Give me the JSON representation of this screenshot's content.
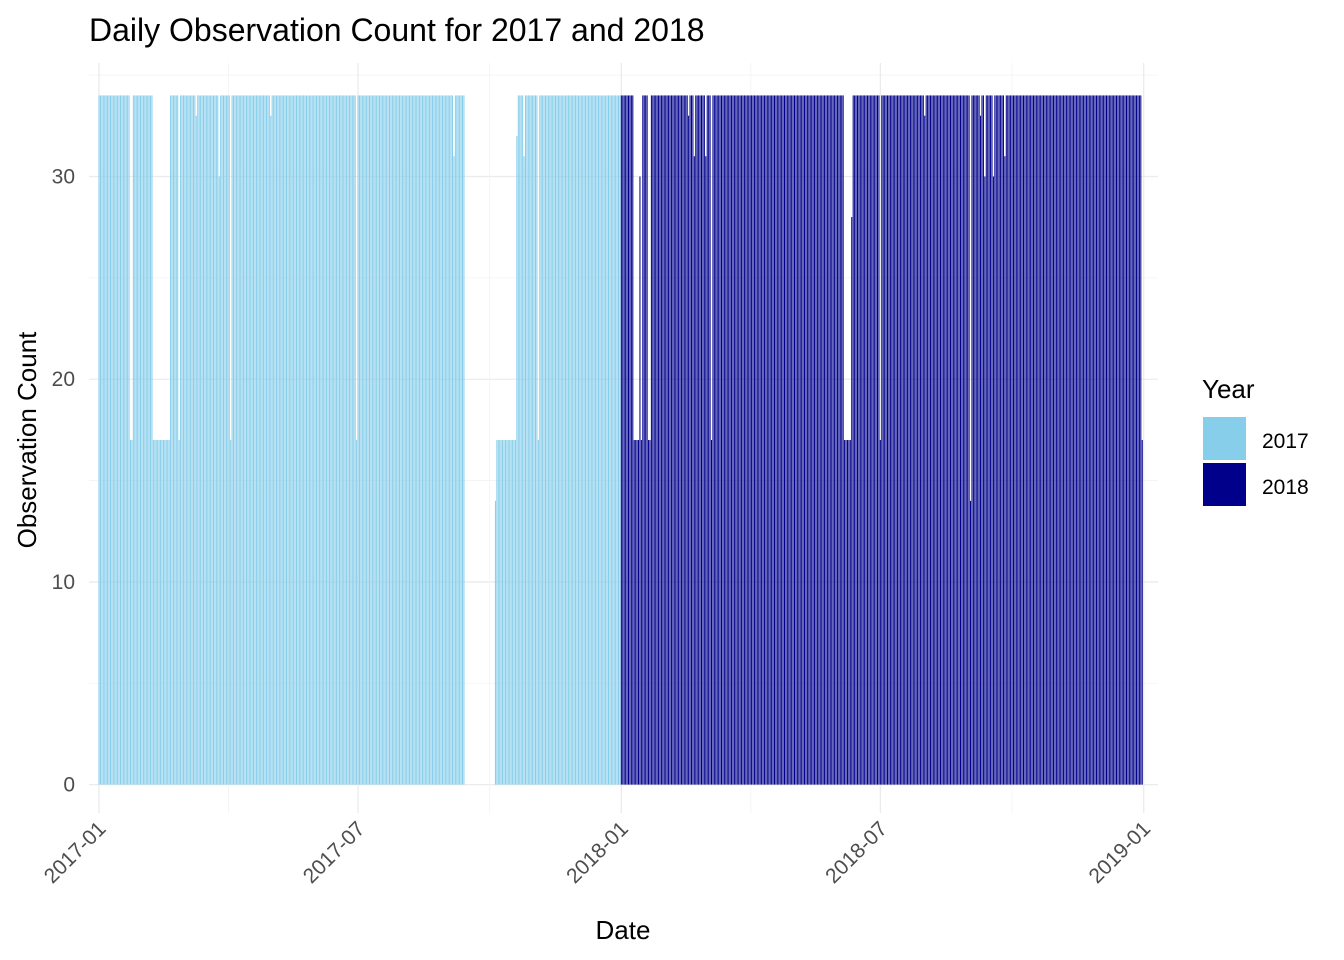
{
  "chart_data": {
    "type": "bar",
    "title": "Daily Observation Count for 2017 and 2018",
    "xlabel": "Date",
    "ylabel": "Observation Count",
    "xlim": [
      "2016-12-25",
      "2019-01-11"
    ],
    "ylim": [
      -1.4,
      35.6
    ],
    "y_ticks": [
      0,
      10,
      20,
      30
    ],
    "x_ticks": [
      "2017-01-01",
      "2017-07-01",
      "2018-01-01",
      "2018-07-01",
      "2019-01-01"
    ],
    "x_tick_labels": [
      "2017-01",
      "2017-07",
      "2018-01",
      "2018-07",
      "2019-01"
    ],
    "grid": true,
    "legend": {
      "title": "Year",
      "position": "right",
      "entries": [
        {
          "label": "2017",
          "color": "#87CEEB"
        },
        {
          "label": "2018",
          "color": "#00008B"
        }
      ]
    },
    "series": [
      {
        "name": "2017",
        "color": "#87CEEB",
        "default_value": 34,
        "segments": [
          {
            "from": "2017-01-01",
            "to": "2017-01-22",
            "value": 34
          },
          {
            "from": "2017-01-23",
            "to": "2017-01-24",
            "value": 17
          },
          {
            "from": "2017-01-25",
            "to": "2017-02-07",
            "value": 34
          },
          {
            "from": "2017-02-08",
            "to": "2017-02-19",
            "value": 17
          },
          {
            "from": "2017-02-20",
            "to": "2017-02-25",
            "value": 34
          },
          {
            "from": "2017-02-26",
            "to": "2017-02-26",
            "value": 17
          },
          {
            "from": "2017-02-27",
            "to": "2017-03-09",
            "value": 34
          },
          {
            "from": "2017-03-10",
            "to": "2017-03-10",
            "value": 33
          },
          {
            "from": "2017-03-11",
            "to": "2017-03-25",
            "value": 34
          },
          {
            "from": "2017-03-26",
            "to": "2017-03-26",
            "value": 30
          },
          {
            "from": "2017-03-27",
            "to": "2017-04-02",
            "value": 34
          },
          {
            "from": "2017-04-03",
            "to": "2017-04-03",
            "value": 17
          },
          {
            "from": "2017-04-04",
            "to": "2017-04-30",
            "value": 34
          },
          {
            "from": "2017-05-01",
            "to": "2017-05-01",
            "value": 33
          },
          {
            "from": "2017-05-02",
            "to": "2017-06-29",
            "value": 34
          },
          {
            "from": "2017-06-30",
            "to": "2017-06-30",
            "value": 17
          },
          {
            "from": "2017-07-01",
            "to": "2017-09-05",
            "value": 34
          },
          {
            "from": "2017-09-06",
            "to": "2017-09-06",
            "value": 31
          },
          {
            "from": "2017-09-07",
            "to": "2017-09-13",
            "value": 34
          },
          {
            "from": "2017-10-05",
            "to": "2017-10-05",
            "value": 14
          },
          {
            "from": "2017-10-06",
            "to": "2017-10-19",
            "value": 17
          },
          {
            "from": "2017-10-20",
            "to": "2017-10-20",
            "value": 32
          },
          {
            "from": "2017-10-21",
            "to": "2017-10-24",
            "value": 34
          },
          {
            "from": "2017-10-25",
            "to": "2017-10-25",
            "value": 31
          },
          {
            "from": "2017-10-26",
            "to": "2017-11-03",
            "value": 34
          },
          {
            "from": "2017-11-04",
            "to": "2017-11-04",
            "value": 17
          },
          {
            "from": "2017-11-05",
            "to": "2017-12-31",
            "value": 34
          }
        ]
      },
      {
        "name": "2018",
        "color": "#00008B",
        "default_value": 34,
        "segments": [
          {
            "from": "2018-01-01",
            "to": "2018-01-09",
            "value": 34
          },
          {
            "from": "2018-01-10",
            "to": "2018-01-13",
            "value": 17
          },
          {
            "from": "2018-01-14",
            "to": "2018-01-14",
            "value": 30
          },
          {
            "from": "2018-01-15",
            "to": "2018-01-15",
            "value": 17
          },
          {
            "from": "2018-01-16",
            "to": "2018-01-19",
            "value": 34
          },
          {
            "from": "2018-01-20",
            "to": "2018-01-21",
            "value": 17
          },
          {
            "from": "2018-01-22",
            "to": "2018-02-16",
            "value": 34
          },
          {
            "from": "2018-02-17",
            "to": "2018-02-17",
            "value": 33
          },
          {
            "from": "2018-02-18",
            "to": "2018-02-20",
            "value": 34
          },
          {
            "from": "2018-02-21",
            "to": "2018-02-21",
            "value": 31
          },
          {
            "from": "2018-02-22",
            "to": "2018-02-28",
            "value": 34
          },
          {
            "from": "2018-03-01",
            "to": "2018-03-01",
            "value": 31
          },
          {
            "from": "2018-03-02",
            "to": "2018-03-04",
            "value": 34
          },
          {
            "from": "2018-03-05",
            "to": "2018-03-05",
            "value": 17
          },
          {
            "from": "2018-03-06",
            "to": "2018-06-05",
            "value": 34
          },
          {
            "from": "2018-06-06",
            "to": "2018-06-10",
            "value": 17
          },
          {
            "from": "2018-06-11",
            "to": "2018-06-11",
            "value": 28
          },
          {
            "from": "2018-06-12",
            "to": "2018-06-30",
            "value": 34
          },
          {
            "from": "2018-07-01",
            "to": "2018-07-01",
            "value": 17
          },
          {
            "from": "2018-07-02",
            "to": "2018-07-31",
            "value": 34
          },
          {
            "from": "2018-08-01",
            "to": "2018-08-01",
            "value": 33
          },
          {
            "from": "2018-08-02",
            "to": "2018-09-01",
            "value": 34
          },
          {
            "from": "2018-09-02",
            "to": "2018-09-02",
            "value": 14
          },
          {
            "from": "2018-09-03",
            "to": "2018-09-08",
            "value": 34
          },
          {
            "from": "2018-09-09",
            "to": "2018-09-09",
            "value": 33
          },
          {
            "from": "2018-09-10",
            "to": "2018-09-11",
            "value": 34
          },
          {
            "from": "2018-09-12",
            "to": "2018-09-12",
            "value": 30
          },
          {
            "from": "2018-09-13",
            "to": "2018-09-17",
            "value": 34
          },
          {
            "from": "2018-09-18",
            "to": "2018-09-18",
            "value": 30
          },
          {
            "from": "2018-09-19",
            "to": "2018-09-25",
            "value": 34
          },
          {
            "from": "2018-09-26",
            "to": "2018-09-26",
            "value": 31
          },
          {
            "from": "2018-09-27",
            "to": "2018-12-30",
            "value": 34
          },
          {
            "from": "2018-12-31",
            "to": "2018-12-31",
            "value": 17
          }
        ]
      }
    ]
  }
}
